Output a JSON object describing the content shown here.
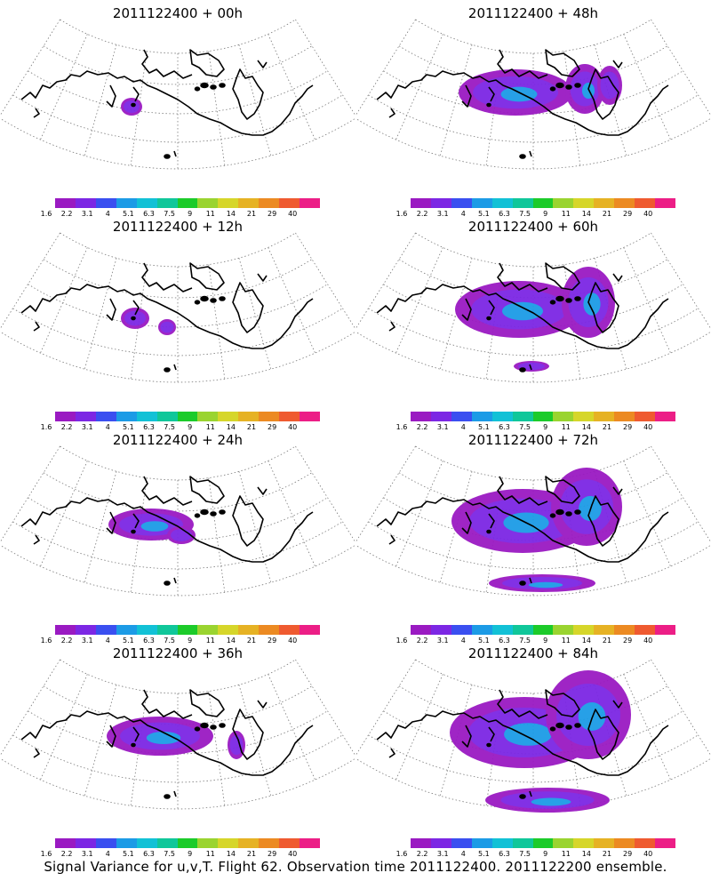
{
  "footer": {
    "caption": "Signal Variance for u,v,T. Flight 62. Observation time 2011122400. 2011122200 ensemble."
  },
  "colorbar": {
    "labels": [
      "1.6",
      "2.2",
      "3.1",
      "4",
      "5.1",
      "6.3",
      "7.5",
      "9",
      "11",
      "14",
      "21",
      "29",
      "40"
    ],
    "colors": [
      "#9a1ac2",
      "#7c27e4",
      "#3a4ff0",
      "#1c9be6",
      "#12c1d6",
      "#10c79a",
      "#1ccb2a",
      "#9ad430",
      "#d6d62a",
      "#e6b224",
      "#ec8a22",
      "#ef5a30",
      "#ec1e86"
    ]
  },
  "panels": [
    {
      "title": "2011122400 + 00h",
      "lead": 0
    },
    {
      "title": "2011122400 + 48h",
      "lead": 48
    },
    {
      "title": "2011122400 + 12h",
      "lead": 12
    },
    {
      "title": "2011122400 + 60h",
      "lead": 60
    },
    {
      "title": "2011122400 + 24h",
      "lead": 24
    },
    {
      "title": "2011122400 + 72h",
      "lead": 72
    },
    {
      "title": "2011122400 + 36h",
      "lead": 36
    },
    {
      "title": "2011122400 + 84h",
      "lead": 84
    }
  ]
}
